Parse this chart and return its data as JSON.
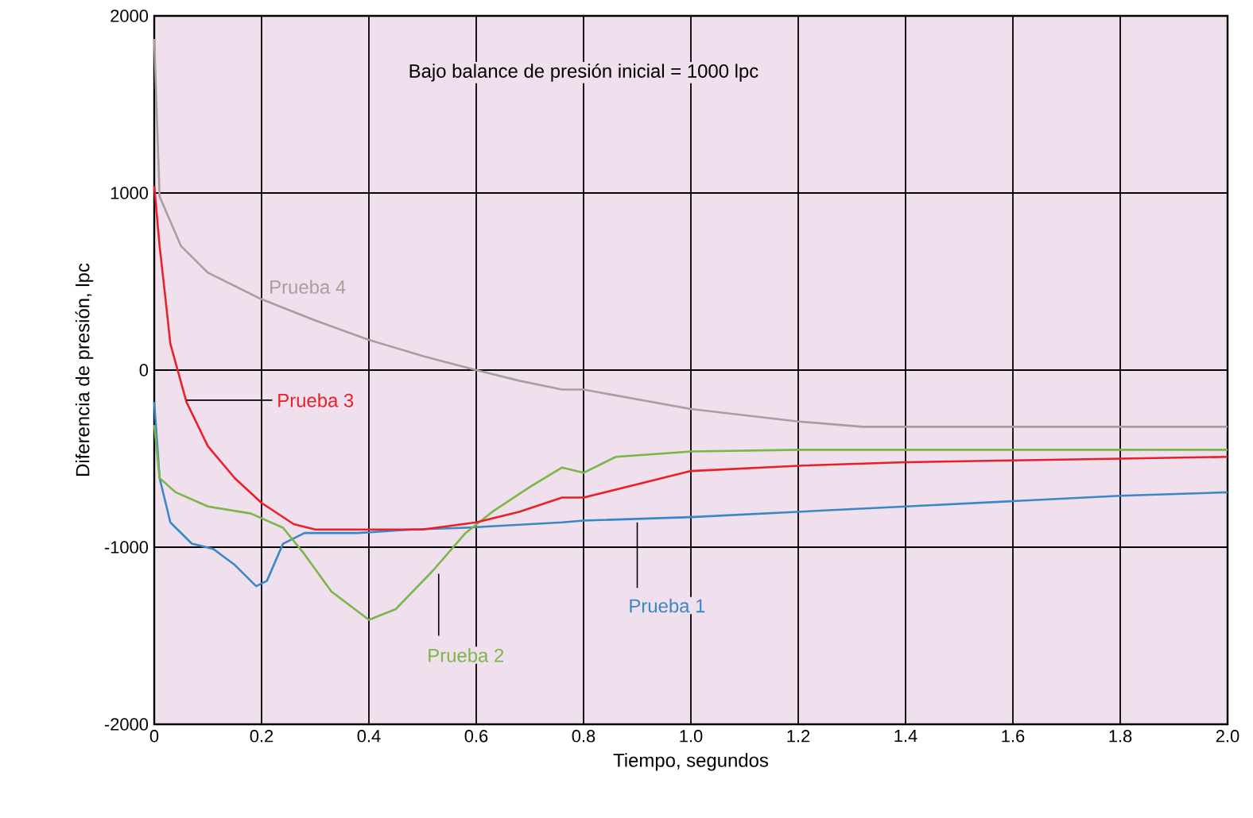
{
  "chart_data": {
    "type": "line",
    "xlabel": "Tiempo, segundos",
    "ylabel": "Diferencia de presión, lpc",
    "annotations": [
      "Bajo balance de presión inicial = 1000 lpc"
    ],
    "xlim": [
      0,
      2
    ],
    "ylim": [
      -2000,
      2000
    ],
    "xticks": [
      {
        "value": 0,
        "label": "0"
      },
      0.2,
      0.4,
      0.6,
      0.8,
      {
        "value": 1,
        "label": "1.0"
      },
      1.2,
      1.4,
      1.6,
      1.8,
      {
        "value": 2,
        "label": "2.0"
      }
    ],
    "yticks": [
      -2000,
      -1000,
      0,
      1000,
      2000
    ],
    "grid": true,
    "series": [
      {
        "name": "Prueba 1",
        "color": "#3a87c8",
        "x": [
          0,
          0.01,
          0.03,
          0.07,
          0.11,
          0.15,
          0.19,
          0.21,
          0.24,
          0.28,
          0.38,
          0.48,
          0.58,
          0.76,
          0.8,
          1.0,
          1.2,
          1.4,
          1.6,
          1.8,
          2.0
        ],
        "values": [
          -180,
          -610,
          -860,
          -980,
          -1010,
          -1100,
          -1220,
          -1190,
          -980,
          -920,
          -920,
          -900,
          -890,
          -860,
          -850,
          -830,
          -800,
          -770,
          -740,
          -710,
          -690
        ]
      },
      {
        "name": "Prueba 2",
        "color": "#7ab648",
        "x": [
          0,
          0.01,
          0.04,
          0.1,
          0.18,
          0.24,
          0.28,
          0.33,
          0.4,
          0.45,
          0.52,
          0.58,
          0.63,
          0.7,
          0.76,
          0.8,
          0.86,
          1.0,
          1.2,
          1.6,
          2.0
        ],
        "values": [
          -310,
          -610,
          -690,
          -770,
          -810,
          -890,
          -1040,
          -1250,
          -1410,
          -1350,
          -1130,
          -920,
          -800,
          -660,
          -550,
          -580,
          -490,
          -460,
          -450,
          -450,
          -450
        ]
      },
      {
        "name": "Prueba 3",
        "color": "#e8202a",
        "x": [
          0,
          0.01,
          0.02,
          0.03,
          0.06,
          0.1,
          0.15,
          0.2,
          0.26,
          0.3,
          0.4,
          0.5,
          0.6,
          0.68,
          0.76,
          0.8,
          1.0,
          1.2,
          1.4,
          1.6,
          1.8,
          2.0
        ],
        "values": [
          1040,
          700,
          430,
          150,
          -180,
          -430,
          -610,
          -750,
          -870,
          -900,
          -900,
          -900,
          -860,
          -800,
          -720,
          -720,
          -570,
          -540,
          -520,
          -510,
          -500,
          -490
        ]
      },
      {
        "name": "Prueba 4",
        "color": "#a89e9e",
        "x": [
          0,
          0.01,
          0.05,
          0.1,
          0.2,
          0.3,
          0.4,
          0.5,
          0.6,
          0.68,
          0.76,
          0.8,
          1.0,
          1.2,
          1.32,
          1.4,
          1.6,
          1.8,
          2.0
        ],
        "values": [
          1870,
          980,
          700,
          550,
          400,
          280,
          170,
          80,
          0,
          -60,
          -110,
          -110,
          -220,
          -290,
          -320,
          -320,
          -320,
          -320,
          -320
        ]
      }
    ]
  }
}
